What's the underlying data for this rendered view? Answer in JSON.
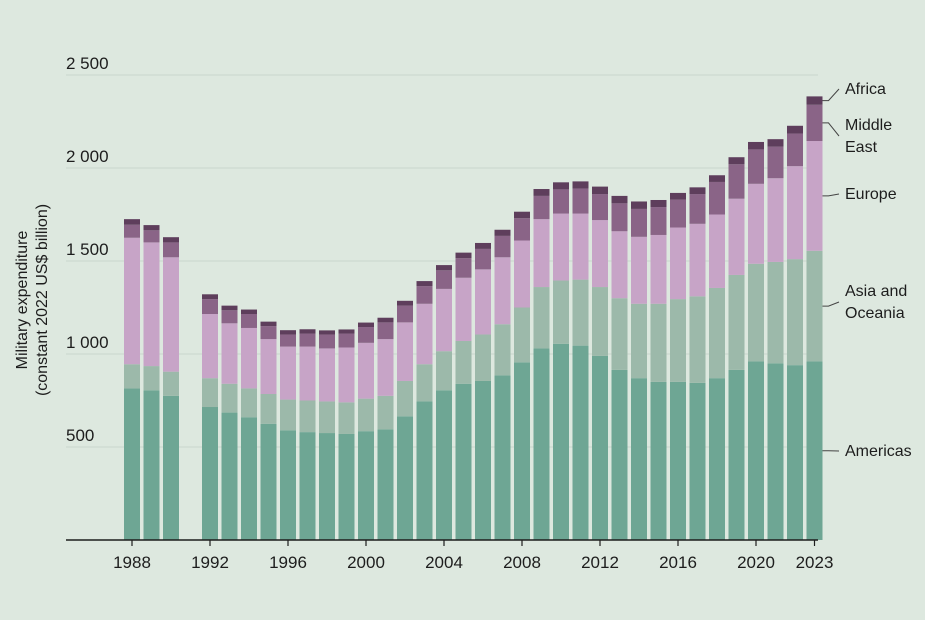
{
  "chart_data": {
    "type": "bar",
    "stacked": true,
    "title": "",
    "ylabel": "Military expenditure",
    "ylabel_line2": "(constant 2022 US$ billion)",
    "xlabel": "",
    "ylim": [
      0,
      2500
    ],
    "yticks": [
      500,
      1000,
      1500,
      2000,
      2500
    ],
    "ytick_labels": [
      "500",
      "1 000",
      "1 500",
      "2 000",
      "2 500"
    ],
    "xtick_years": [
      1988,
      1992,
      1996,
      2000,
      2004,
      2008,
      2012,
      2016,
      2020,
      2023
    ],
    "grid": true,
    "legend_position": "right (labels at end of 2023 bar)",
    "categories": [
      1988,
      1989,
      1990,
      1991,
      1992,
      1993,
      1994,
      1995,
      1996,
      1997,
      1998,
      1999,
      2000,
      2001,
      2002,
      2003,
      2004,
      2005,
      2006,
      2007,
      2008,
      2009,
      2010,
      2011,
      2012,
      2013,
      2014,
      2015,
      2016,
      2017,
      2018,
      2019,
      2020,
      2021,
      2022,
      2023
    ],
    "series": [
      {
        "name": "Americas",
        "color": "#6ea694",
        "values": [
          815,
          805,
          775,
          null,
          715,
          685,
          660,
          625,
          590,
          580,
          575,
          570,
          585,
          595,
          665,
          745,
          805,
          840,
          855,
          885,
          955,
          1030,
          1055,
          1045,
          990,
          915,
          870,
          850,
          850,
          845,
          870,
          915,
          960,
          950,
          940,
          960
        ]
      },
      {
        "name": "Asia and Oceania",
        "color": "#9cb9aa",
        "values": [
          130,
          130,
          130,
          null,
          155,
          155,
          155,
          160,
          165,
          170,
          170,
          170,
          175,
          180,
          190,
          200,
          210,
          230,
          250,
          275,
          295,
          330,
          340,
          355,
          370,
          385,
          400,
          420,
          445,
          465,
          485,
          510,
          525,
          545,
          570,
          595
        ]
      },
      {
        "name": "Europe",
        "color": "#c7a4c7",
        "values": [
          680,
          665,
          615,
          null,
          345,
          325,
          325,
          295,
          285,
          290,
          285,
          295,
          300,
          305,
          315,
          325,
          335,
          340,
          350,
          360,
          360,
          365,
          360,
          355,
          360,
          360,
          360,
          370,
          385,
          390,
          395,
          410,
          430,
          450,
          500,
          590
        ]
      },
      {
        "name": "Middle East",
        "color": "#8a6487",
        "values": [
          70,
          65,
          80,
          null,
          80,
          70,
          75,
          70,
          65,
          70,
          75,
          75,
          85,
          90,
          90,
          95,
          100,
          105,
          110,
          115,
          120,
          125,
          130,
          135,
          140,
          150,
          150,
          150,
          150,
          160,
          175,
          185,
          185,
          170,
          175,
          195
        ]
      },
      {
        "name": "Africa",
        "color": "#5e3e5c",
        "values": [
          30,
          28,
          28,
          null,
          26,
          25,
          24,
          24,
          23,
          23,
          22,
          22,
          24,
          25,
          26,
          27,
          28,
          30,
          32,
          33,
          35,
          37,
          38,
          38,
          40,
          40,
          40,
          38,
          36,
          36,
          36,
          38,
          40,
          40,
          42,
          45
        ]
      }
    ]
  }
}
